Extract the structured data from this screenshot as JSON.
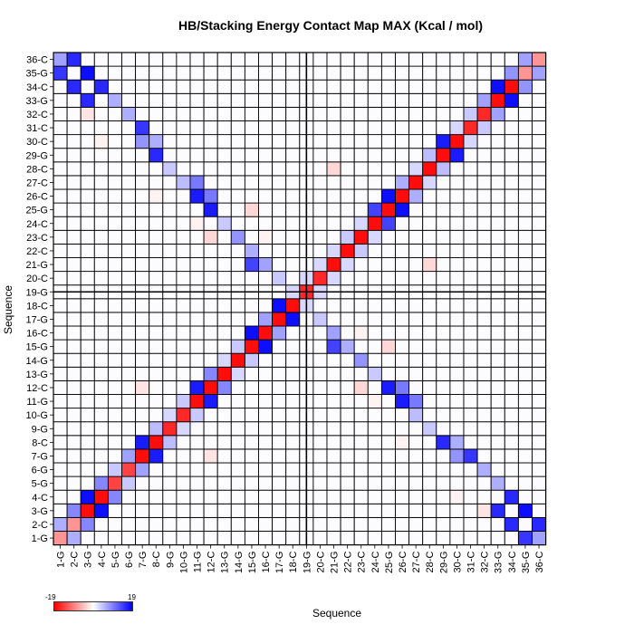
{
  "title": "HB/Stacking Energy Contact Map MAX (Kcal / mol)",
  "chart_data": {
    "type": "heatmap",
    "title": "HB/Stacking Energy Contact Map MAX (Kcal / mol)",
    "xlabel": "Sequence",
    "ylabel": "Sequence",
    "labels": [
      "1-G",
      "2-C",
      "3-G",
      "4-C",
      "5-G",
      "6-G",
      "7-G",
      "8-C",
      "9-G",
      "10-G",
      "11-G",
      "12-C",
      "13-G",
      "14-G",
      "15-G",
      "16-C",
      "17-G",
      "18-C",
      "19-G",
      "20-C",
      "21-G",
      "22-C",
      "23-C",
      "24-C",
      "25-G",
      "26-C",
      "27-C",
      "28-C",
      "29-G",
      "30-C",
      "31-C",
      "32-C",
      "33-G",
      "34-C",
      "35-G",
      "36-C"
    ],
    "diagonal_values": [
      -8,
      -8,
      -18,
      -18,
      -14,
      -14,
      -18,
      -18,
      -16,
      -16,
      -18,
      -18,
      -18,
      -18,
      -18,
      -18,
      -18,
      -18,
      -16,
      -16,
      -18,
      -18,
      -18,
      -18,
      -18,
      -18,
      -18,
      -18,
      -18,
      -18,
      -16,
      -16,
      -18,
      -18,
      -8,
      -8
    ],
    "stacking_pairs": [
      [
        1,
        2,
        6
      ],
      [
        2,
        3,
        9
      ],
      [
        3,
        4,
        18
      ],
      [
        4,
        5,
        9
      ],
      [
        5,
        6,
        4
      ],
      [
        6,
        7,
        7
      ],
      [
        7,
        8,
        17
      ],
      [
        8,
        9,
        5
      ],
      [
        9,
        10,
        3
      ],
      [
        10,
        11,
        4
      ],
      [
        11,
        12,
        17
      ],
      [
        12,
        13,
        9
      ],
      [
        13,
        14,
        3
      ],
      [
        14,
        15,
        4
      ],
      [
        15,
        16,
        18
      ],
      [
        16,
        17,
        7
      ],
      [
        17,
        18,
        18
      ],
      [
        18,
        19,
        3
      ],
      [
        19,
        20,
        18
      ],
      [
        20,
        21,
        3
      ],
      [
        21,
        22,
        18
      ],
      [
        22,
        23,
        4
      ],
      [
        23,
        24,
        3
      ],
      [
        24,
        25,
        14
      ],
      [
        25,
        26,
        18
      ],
      [
        26,
        27,
        6
      ],
      [
        27,
        28,
        3
      ],
      [
        28,
        29,
        5
      ],
      [
        29,
        30,
        17
      ],
      [
        30,
        31,
        3
      ],
      [
        31,
        32,
        4
      ],
      [
        32,
        33,
        7
      ],
      [
        33,
        34,
        18
      ],
      [
        34,
        35,
        8
      ],
      [
        35,
        36,
        7
      ],
      [
        1,
        36,
        7
      ]
    ],
    "base_pairs": [
      [
        1,
        35,
        15
      ],
      [
        2,
        34,
        16
      ],
      [
        2,
        36,
        16
      ],
      [
        3,
        33,
        16
      ],
      [
        3,
        35,
        18
      ],
      [
        4,
        34,
        16
      ],
      [
        5,
        33,
        6
      ],
      [
        6,
        32,
        6
      ],
      [
        7,
        30,
        8
      ],
      [
        7,
        31,
        15
      ],
      [
        8,
        29,
        16
      ],
      [
        8,
        30,
        6
      ],
      [
        9,
        28,
        4
      ],
      [
        10,
        27,
        5
      ],
      [
        11,
        26,
        17
      ],
      [
        11,
        27,
        10
      ],
      [
        12,
        25,
        17
      ],
      [
        12,
        26,
        10
      ],
      [
        13,
        24,
        6
      ],
      [
        14,
        23,
        8
      ],
      [
        15,
        21,
        14
      ],
      [
        15,
        22,
        6
      ],
      [
        16,
        21,
        7
      ],
      [
        17,
        20,
        4
      ],
      [
        19,
        20,
        3
      ],
      [
        21,
        22,
        3
      ],
      [
        24,
        13,
        4
      ]
    ],
    "mismatch_pairs": [
      [
        3,
        32,
        -2
      ],
      [
        4,
        30,
        -1
      ],
      [
        8,
        26,
        -1
      ],
      [
        11,
        24,
        -1
      ],
      [
        12,
        23,
        -3
      ],
      [
        15,
        25,
        -3
      ],
      [
        16,
        23,
        -1
      ],
      [
        7,
        12,
        -2
      ],
      [
        21,
        28,
        -3
      ]
    ],
    "colorbar": {
      "min": -19,
      "max": 19,
      "low_color": "#ff0000",
      "mid_color": "#ffffff",
      "high_color": "#0000ff"
    },
    "reference_lines": [
      "18.5",
      "18.5"
    ],
    "grid": true
  }
}
